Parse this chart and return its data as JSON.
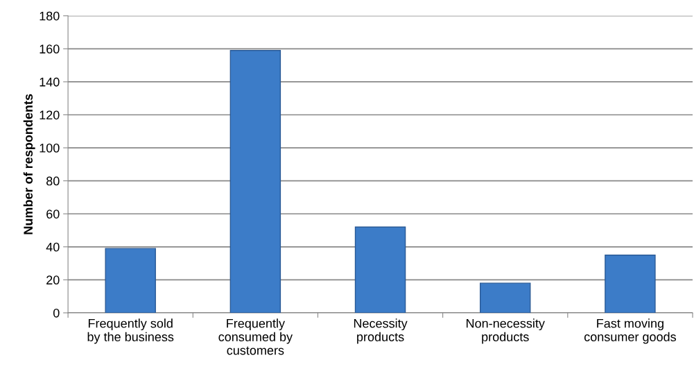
{
  "chart_data": {
    "type": "bar",
    "ylabel": "Number of respondents",
    "categories": [
      "Frequently sold\nby the business",
      "Frequently\nconsumed by\ncustomers",
      "Necessity\nproducts",
      "Non-necessity\nproducts",
      "Fast moving\nconsumer goods"
    ],
    "values": [
      39,
      159,
      52,
      18,
      35
    ],
    "color": "#3c7cc8",
    "ylim": [
      0,
      180
    ],
    "yticks": [
      0,
      20,
      40,
      60,
      80,
      100,
      120,
      140,
      160,
      180
    ],
    "grid": "y",
    "legend": false
  }
}
